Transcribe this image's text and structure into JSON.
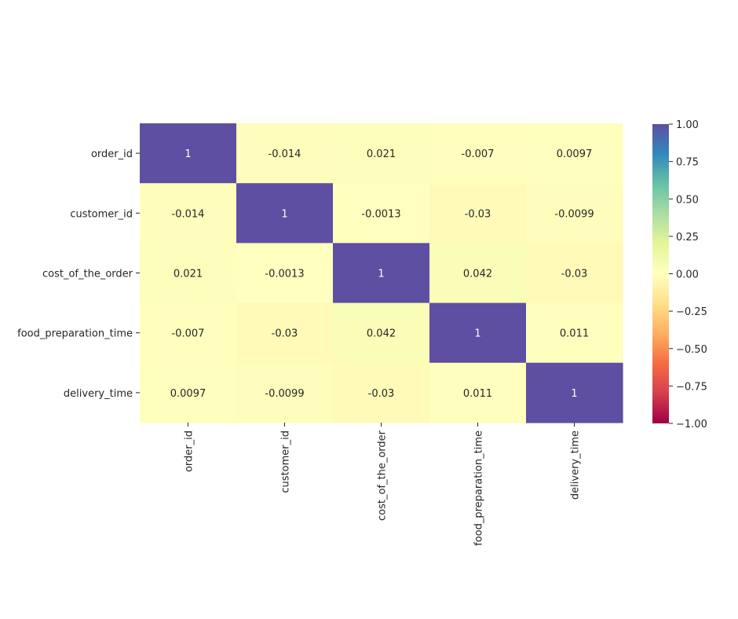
{
  "chart_data": {
    "type": "heatmap",
    "title": "",
    "xlabel": "",
    "ylabel": "",
    "x_labels": [
      "order_id",
      "customer_id",
      "cost_of_the_order",
      "food_preparation_time",
      "delivery_time"
    ],
    "y_labels": [
      "order_id",
      "customer_id",
      "cost_of_the_order",
      "food_preparation_time",
      "delivery_time"
    ],
    "values": [
      [
        1,
        -0.014,
        0.021,
        -0.007,
        0.0097
      ],
      [
        -0.014,
        1,
        -0.0013,
        -0.03,
        -0.0099
      ],
      [
        0.021,
        -0.0013,
        1,
        0.042,
        -0.03
      ],
      [
        -0.007,
        -0.03,
        0.042,
        1,
        0.011
      ],
      [
        0.0097,
        -0.0099,
        -0.03,
        0.011,
        1
      ]
    ],
    "cell_labels": [
      [
        "1",
        "-0.014",
        "0.021",
        "-0.007",
        "0.0097"
      ],
      [
        "-0.014",
        "1",
        "-0.0013",
        "-0.03",
        "-0.0099"
      ],
      [
        "0.021",
        "-0.0013",
        "1",
        "0.042",
        "-0.03"
      ],
      [
        "-0.007",
        "-0.03",
        "0.042",
        "1",
        "0.011"
      ],
      [
        "0.0097",
        "-0.0099",
        "-0.03",
        "0.011",
        "1"
      ]
    ],
    "colormap": "Spectral",
    "vmin": -1,
    "vmax": 1,
    "colorbar": {
      "ticks": [
        1,
        0.75,
        0.5,
        0.25,
        0,
        -0.25,
        -0.5,
        -0.75,
        -1
      ],
      "tick_labels": [
        "1.00",
        "0.75",
        "0.50",
        "0.25",
        "0.00",
        "−0.25",
        "−0.50",
        "−0.75",
        "−1.00"
      ]
    },
    "colors": {
      "high": "#5e4fa2",
      "neutral": "#ffffbf",
      "low": "#9e0142",
      "annotation_on_dark": "#ffffff",
      "annotation_on_light": "#262626"
    }
  }
}
